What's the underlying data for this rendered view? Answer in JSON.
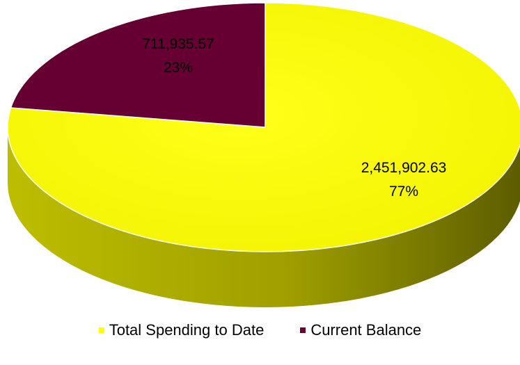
{
  "chart_data": {
    "type": "pie",
    "title": "",
    "labels": [
      "Total Spending to Date",
      "Current Balance"
    ],
    "values": [
      2451902.63,
      711935.57
    ],
    "value_labels": [
      "2,451,902.63",
      "711,935.57"
    ],
    "percent_labels": [
      "77%",
      "23%"
    ],
    "colors": [
      "#FFFF00",
      "#660033"
    ],
    "legend_position": "bottom",
    "style": "3d"
  }
}
